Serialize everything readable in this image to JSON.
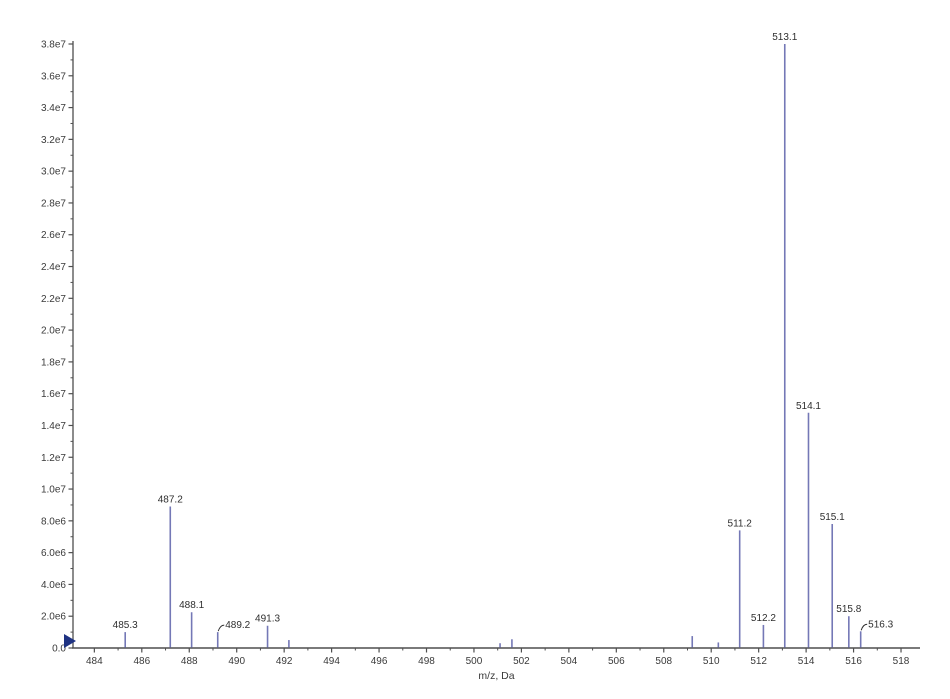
{
  "figure": {
    "background": "#ffffff"
  },
  "chart_data": {
    "type": "bar",
    "subtype": "mass-spectrum-stick-plot",
    "title": "",
    "xlabel": "m/z, Da",
    "ylabel": "",
    "xlim": [
      483.1,
      518.8
    ],
    "ylim": [
      0,
      38000000
    ],
    "grid": false,
    "legend": false,
    "x_tick_values": [
      484,
      486,
      488,
      490,
      492,
      494,
      496,
      498,
      500,
      502,
      504,
      506,
      508,
      510,
      512,
      514,
      516,
      518
    ],
    "x_tick_labels": [
      "484",
      "486",
      "488",
      "490",
      "492",
      "494",
      "496",
      "498",
      "500",
      "502",
      "504",
      "506",
      "508",
      "510",
      "512",
      "514",
      "516",
      "518"
    ],
    "x_minor_tick_step": 1,
    "y_tick_values": [
      0,
      2000000,
      4000000,
      6000000,
      8000000,
      10000000,
      12000000,
      14000000,
      16000000,
      18000000,
      20000000,
      22000000,
      24000000,
      26000000,
      28000000,
      30000000,
      32000000,
      34000000,
      36000000,
      38000000
    ],
    "y_tick_labels": [
      "0.0",
      "2.0e6",
      "4.0e6",
      "6.0e6",
      "8.0e6",
      "1.0e7",
      "1.2e7",
      "1.4e7",
      "1.6e7",
      "1.8e7",
      "2.0e7",
      "2.2e7",
      "2.4e7",
      "2.6e7",
      "2.8e7",
      "3.0e7",
      "3.2e7",
      "3.4e7",
      "3.6e7",
      "3.8e7"
    ],
    "y_minor_tick_step": 1000000,
    "peaks": [
      {
        "mz": 485.3,
        "intensity": 1000000,
        "label": "485.3"
      },
      {
        "mz": 487.2,
        "intensity": 8900000,
        "label": "487.2"
      },
      {
        "mz": 488.1,
        "intensity": 2250000,
        "label": "488.1"
      },
      {
        "mz": 489.2,
        "intensity": 1000000,
        "label": "489.2",
        "leader": true
      },
      {
        "mz": 491.3,
        "intensity": 1400000,
        "label": "491.3"
      },
      {
        "mz": 492.2,
        "intensity": 500000,
        "label": null
      },
      {
        "mz": 501.1,
        "intensity": 300000,
        "label": null
      },
      {
        "mz": 501.6,
        "intensity": 550000,
        "label": null
      },
      {
        "mz": 509.2,
        "intensity": 750000,
        "label": null
      },
      {
        "mz": 510.3,
        "intensity": 350000,
        "label": null
      },
      {
        "mz": 511.2,
        "intensity": 7400000,
        "label": "511.2"
      },
      {
        "mz": 512.2,
        "intensity": 1450000,
        "label": "512.2"
      },
      {
        "mz": 513.1,
        "intensity": 38000000,
        "label": "513.1"
      },
      {
        "mz": 514.1,
        "intensity": 14800000,
        "label": "514.1"
      },
      {
        "mz": 515.1,
        "intensity": 7800000,
        "label": "515.1"
      },
      {
        "mz": 515.8,
        "intensity": 2000000,
        "label": "515.8"
      },
      {
        "mz": 516.3,
        "intensity": 1050000,
        "label": "516.3",
        "leader": true
      }
    ],
    "colors": {
      "bar": "#7478b6",
      "axis": "#4f4f4f",
      "tick_text": "#3a3a3a",
      "peak_text": "#2e2e2e",
      "origin_marker": "#1e3282",
      "background": "#ffffff"
    }
  }
}
